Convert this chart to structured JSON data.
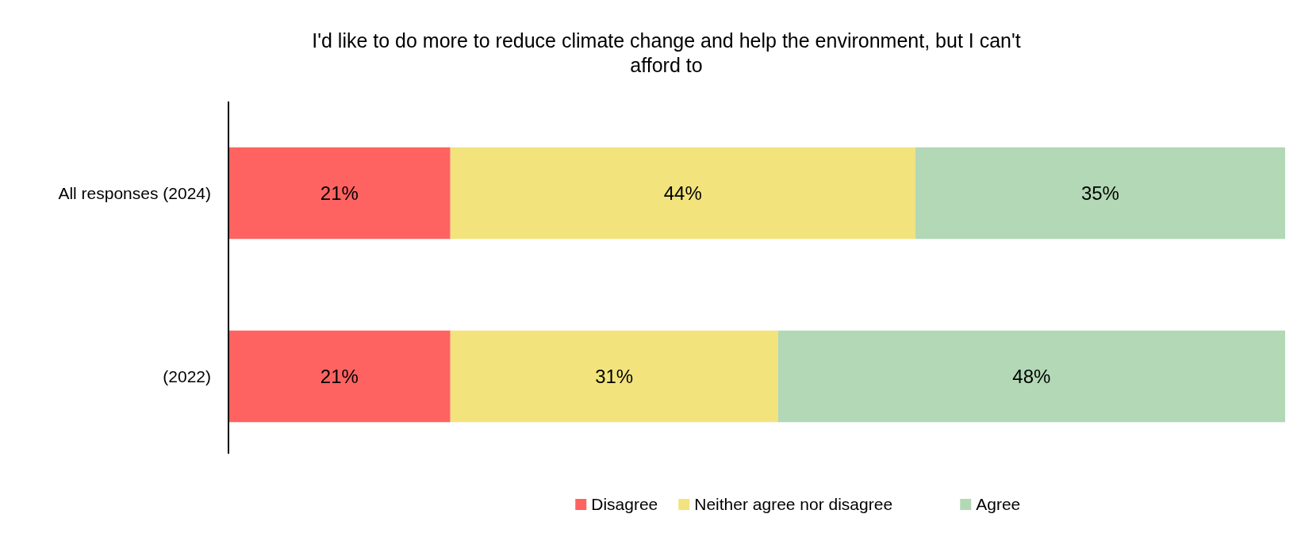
{
  "chart_data": {
    "type": "bar",
    "orientation": "horizontal",
    "stacked": true,
    "title": "I'd like to do more to reduce climate change and help the environment, but I can't afford to",
    "categories": [
      "All responses (2024)",
      "(2022)"
    ],
    "series": [
      {
        "name": "Disagree",
        "color": "#ff6361",
        "values": [
          21,
          21
        ],
        "value_labels": [
          "21%",
          "21%"
        ]
      },
      {
        "name": "Neither agree nor disagree",
        "color": "#f2e37d",
        "values": [
          44,
          31
        ],
        "value_labels": [
          "44%",
          "31%"
        ]
      },
      {
        "name": "Agree",
        "color": "#b2d8b5",
        "values": [
          35,
          48
        ],
        "value_labels": [
          "35%",
          "48%"
        ]
      }
    ],
    "legend": "bottom"
  }
}
